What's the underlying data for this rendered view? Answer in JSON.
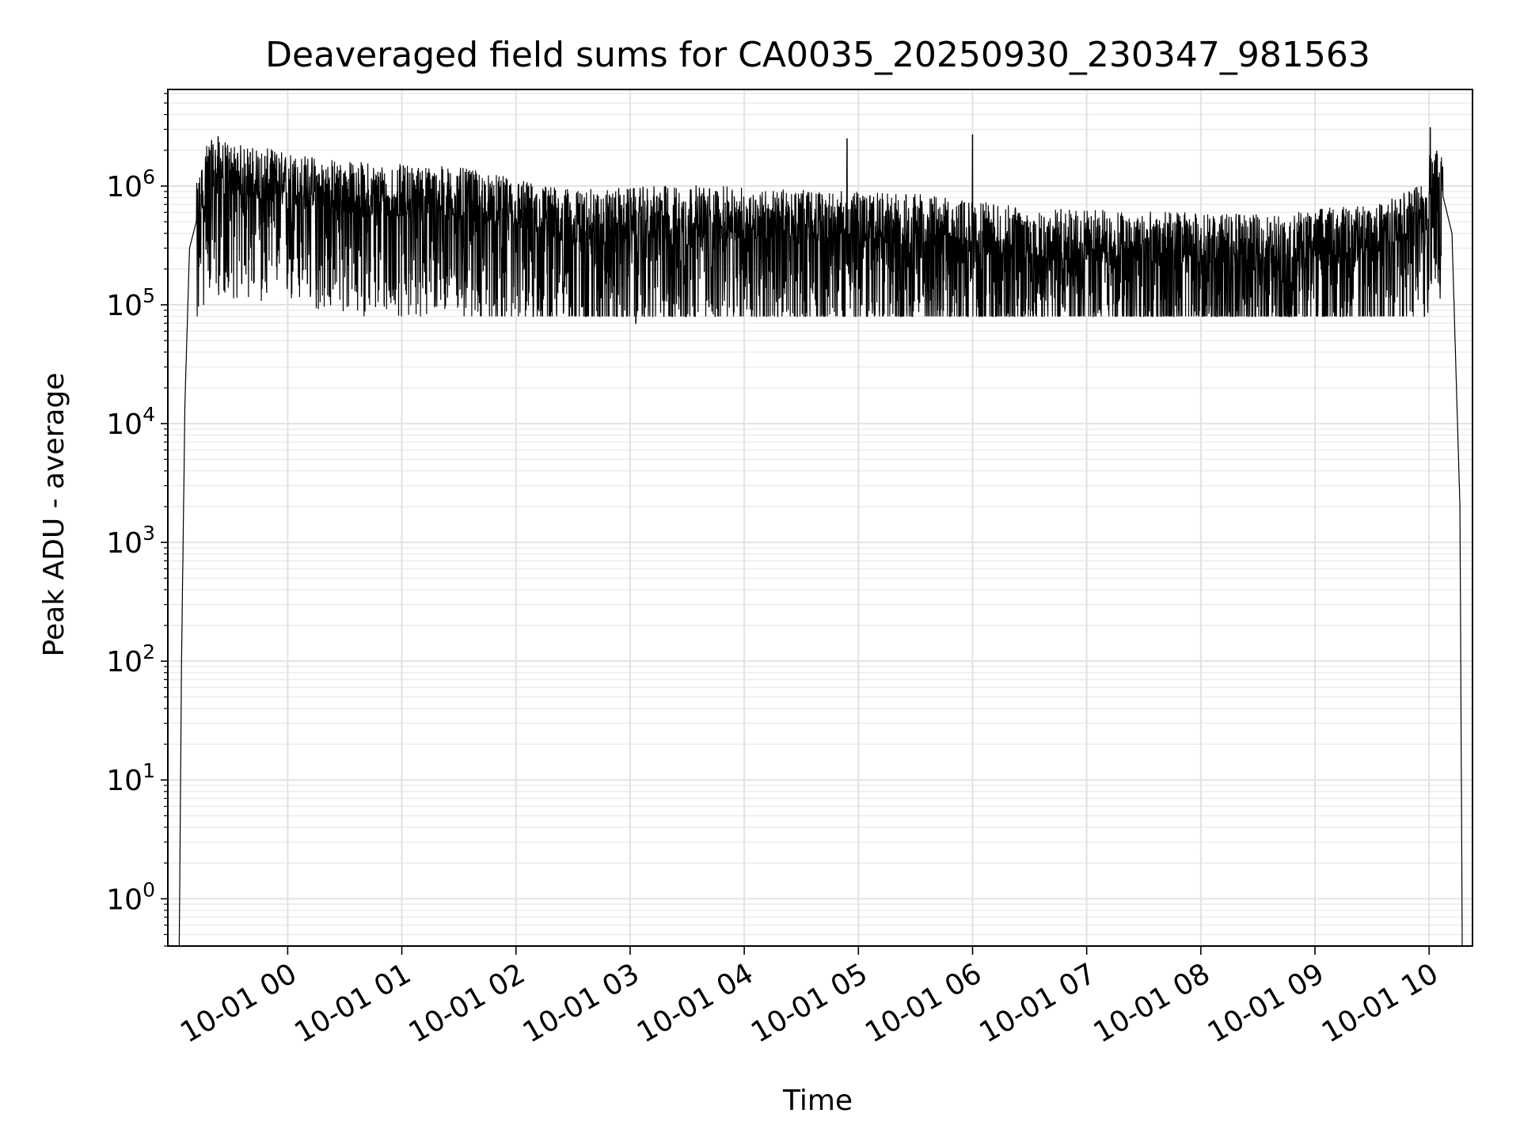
{
  "chart_data": {
    "type": "line",
    "title": "Deaveraged field sums for CA0035_20250930_230347_981563",
    "xlabel": "Time",
    "ylabel": "Peak ADU - average",
    "yscale": "log",
    "ylim": [
      0.4,
      6500000
    ],
    "xlim_hours": [
      -1.05,
      10.38
    ],
    "grid": true,
    "line_color": "#000000",
    "x_ticks": [
      {
        "label": "10-01 00",
        "hours": 0
      },
      {
        "label": "10-01 01",
        "hours": 1
      },
      {
        "label": "10-01 02",
        "hours": 2
      },
      {
        "label": "10-01 03",
        "hours": 3
      },
      {
        "label": "10-01 04",
        "hours": 4
      },
      {
        "label": "10-01 05",
        "hours": 5
      },
      {
        "label": "10-01 06",
        "hours": 6
      },
      {
        "label": "10-01 07",
        "hours": 7
      },
      {
        "label": "10-01 08",
        "hours": 8
      },
      {
        "label": "10-01 09",
        "hours": 9
      },
      {
        "label": "10-01 10",
        "hours": 10
      }
    ],
    "y_ticks": [
      {
        "base": "10",
        "exp": "0",
        "value": 1
      },
      {
        "base": "10",
        "exp": "1",
        "value": 10
      },
      {
        "base": "10",
        "exp": "2",
        "value": 100
      },
      {
        "base": "10",
        "exp": "3",
        "value": 1000
      },
      {
        "base": "10",
        "exp": "4",
        "value": 10000
      },
      {
        "base": "10",
        "exp": "5",
        "value": 100000
      },
      {
        "base": "10",
        "exp": "6",
        "value": 1000000
      }
    ],
    "series": [
      {
        "name": "deaveraged field sum",
        "envelope": [
          {
            "hours": -0.95,
            "value": 0.4
          },
          {
            "hours": -0.93,
            "value": 100
          },
          {
            "hours": -0.9,
            "value": 15000
          },
          {
            "hours": -0.86,
            "value": 300000
          },
          {
            "hours": -0.7,
            "value": 1200000
          },
          {
            "hours": 0.5,
            "value": 800000
          },
          {
            "hours": 1.5,
            "value": 700000
          },
          {
            "hours": 2.5,
            "value": 450000
          },
          {
            "hours": 3.5,
            "value": 500000
          },
          {
            "hours": 4.5,
            "value": 450000
          },
          {
            "hours": 5.5,
            "value": 420000
          },
          {
            "hours": 6.5,
            "value": 320000
          },
          {
            "hours": 7.5,
            "value": 300000
          },
          {
            "hours": 8.5,
            "value": 280000
          },
          {
            "hours": 9.6,
            "value": 350000
          },
          {
            "hours": 9.98,
            "value": 600000
          },
          {
            "hours": 10.0,
            "value": 1100000
          },
          {
            "hours": 10.1,
            "value": 1000000
          },
          {
            "hours": 10.2,
            "value": 400000
          },
          {
            "hours": 10.27,
            "value": 2000
          },
          {
            "hours": 10.29,
            "value": 0.4
          }
        ],
        "noise_range": [
          80000,
          2500000
        ],
        "peaks": [
          {
            "hours": -0.61,
            "value": 2600000
          },
          {
            "hours": 10.01,
            "value": 3100000
          },
          {
            "hours": 6.0,
            "value": 2700000
          },
          {
            "hours": 4.9,
            "value": 2500000
          },
          {
            "hours": 3.05,
            "value": 70000
          }
        ]
      }
    ]
  }
}
